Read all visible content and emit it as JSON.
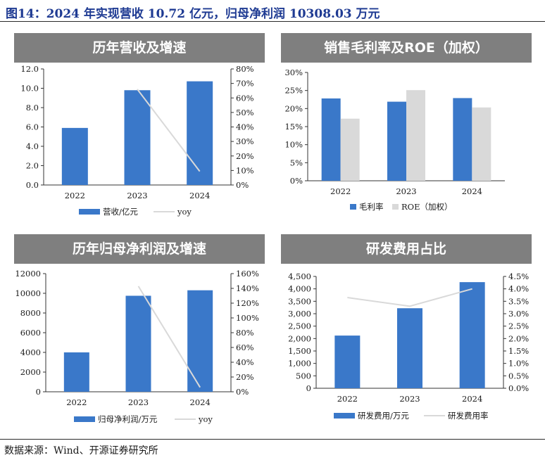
{
  "figure_title": "图14：2024 年实现营收 10.72 亿元，归母净利润 10308.03 万元",
  "source": "数据来源：Wind、开源证券研究所",
  "colors": {
    "bar_primary": "#3a78c9",
    "bar_secondary": "#d9d9d9",
    "line": "#d9d9d9",
    "panel_header": "#7f7f7f",
    "title_text": "#1f3b93"
  },
  "chart_data": [
    {
      "panel_title": "历年营收及增速",
      "type": "bar",
      "categories": [
        "2022",
        "2023",
        "2024"
      ],
      "series": [
        {
          "name": "营收/亿元",
          "kind": "bar",
          "axis": "left",
          "values": [
            5.9,
            9.8,
            10.72
          ]
        },
        {
          "name": "yoy",
          "kind": "line",
          "axis": "right",
          "values": [
            null,
            66,
            9.4
          ]
        }
      ],
      "ylim_left": [
        0,
        12
      ],
      "yticks_left": [
        "0.0",
        "2.0",
        "4.0",
        "6.0",
        "8.0",
        "10.0",
        "12.0"
      ],
      "ylim_right": [
        0,
        80
      ],
      "yticks_right": [
        "0%",
        "10%",
        "20%",
        "30%",
        "40%",
        "50%",
        "60%",
        "70%",
        "80%"
      ],
      "legend": "bottom",
      "grid": false
    },
    {
      "panel_title": "销售毛利率及ROE（加权）",
      "type": "bar",
      "categories": [
        "2022",
        "2023",
        "2024"
      ],
      "series": [
        {
          "name": "毛利率",
          "kind": "bar",
          "axis": "left",
          "values": [
            22.8,
            21.9,
            22.9
          ]
        },
        {
          "name": "ROE（加权）",
          "kind": "bar",
          "axis": "left",
          "values": [
            17.2,
            25.1,
            20.3
          ]
        }
      ],
      "ylim_left": [
        0,
        30
      ],
      "yticks_left": [
        "0%",
        "5%",
        "10%",
        "15%",
        "20%",
        "25%",
        "30%"
      ],
      "legend": "bottom",
      "grid": false
    },
    {
      "panel_title": "历年归母净利润及增速",
      "type": "bar",
      "categories": [
        "2022",
        "2023",
        "2024"
      ],
      "series": [
        {
          "name": "归母净利润/万元",
          "kind": "bar",
          "axis": "left",
          "values": [
            4000,
            9750,
            10308.03
          ]
        },
        {
          "name": "yoy",
          "kind": "line",
          "axis": "right",
          "values": [
            null,
            143,
            6
          ]
        }
      ],
      "ylim_left": [
        0,
        12000
      ],
      "yticks_left": [
        "0",
        "2000",
        "4000",
        "6000",
        "8000",
        "10000",
        "12000"
      ],
      "ylim_right": [
        0,
        160
      ],
      "yticks_right": [
        "0%",
        "20%",
        "40%",
        "60%",
        "80%",
        "100%",
        "120%",
        "140%",
        "160%"
      ],
      "legend": "bottom",
      "grid": false
    },
    {
      "panel_title": "研发费用占比",
      "type": "bar",
      "categories": [
        "2022",
        "2023",
        "2024"
      ],
      "series": [
        {
          "name": "研发费用/万元",
          "kind": "bar",
          "axis": "left",
          "values": [
            2120,
            3220,
            4270
          ]
        },
        {
          "name": "研发费用率",
          "kind": "line",
          "axis": "right",
          "values": [
            3.65,
            3.3,
            4.0
          ]
        }
      ],
      "ylim_left": [
        0,
        4500
      ],
      "yticks_left": [
        "0",
        "500",
        "1,000",
        "1,500",
        "2,000",
        "2,500",
        "3,000",
        "3,500",
        "4,000",
        "4,500"
      ],
      "ylim_right": [
        0,
        4.5
      ],
      "yticks_right": [
        "0.0%",
        "0.5%",
        "1.0%",
        "1.5%",
        "2.0%",
        "2.5%",
        "3.0%",
        "3.5%",
        "4.0%",
        "4.5%"
      ],
      "legend": "bottom",
      "grid": false
    }
  ]
}
